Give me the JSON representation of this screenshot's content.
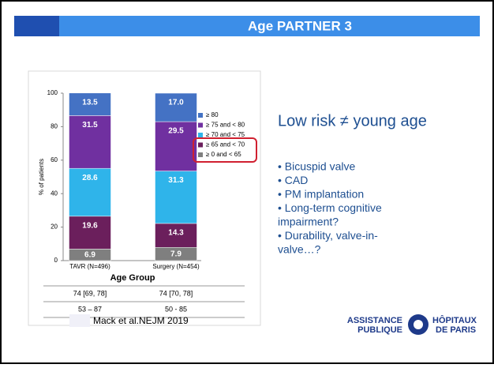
{
  "slide_title": "Age PARTNER 3",
  "chart_data": {
    "type": "stacked_bar",
    "categories": [
      "TAVR (N=496)",
      "Surgery (N=454)"
    ],
    "series": [
      {
        "name": "≥ 0 and < 65",
        "color": "#7f7f7f",
        "values": [
          6.9,
          7.9
        ]
      },
      {
        "name": "≥ 65 and < 70",
        "color": "#6b1f5c",
        "values": [
          19.6,
          14.3
        ]
      },
      {
        "name": "≥ 70 and < 75",
        "color": "#2fb4ea",
        "values": [
          28.6,
          31.3
        ]
      },
      {
        "name": "≥ 75 and < 80",
        "color": "#7030a0",
        "values": [
          31.5,
          29.5
        ]
      },
      {
        "name": "≥ 80",
        "color": "#4472c4",
        "values": [
          13.5,
          17.0
        ],
        "value_labels": [
          "13.5",
          "17.0"
        ]
      }
    ],
    "ylabel": "% of patients",
    "xlabel": "Age Group",
    "ylim": [
      0,
      100
    ],
    "yticks": [
      0,
      20,
      40,
      60,
      80,
      100
    ],
    "table_rows": [
      [
        "74 [69, 78]",
        "74 [70, 78]"
      ],
      [
        "53 – 87",
        "50 - 85"
      ]
    ]
  },
  "heading": "Low risk ≠ young age",
  "bullet_lines": [
    "• Bicuspid valve",
    "• CAD",
    "• PM implantation",
    "• Long-term cognitive",
    "impairment?",
    "• Durability, valve-in-",
    "valve…?"
  ],
  "citation": "Mack et al.NEJM 2019",
  "logo": [
    "ASSISTANCE",
    "PUBLIQUE",
    "HÔPITAUX",
    "DE PARIS"
  ]
}
